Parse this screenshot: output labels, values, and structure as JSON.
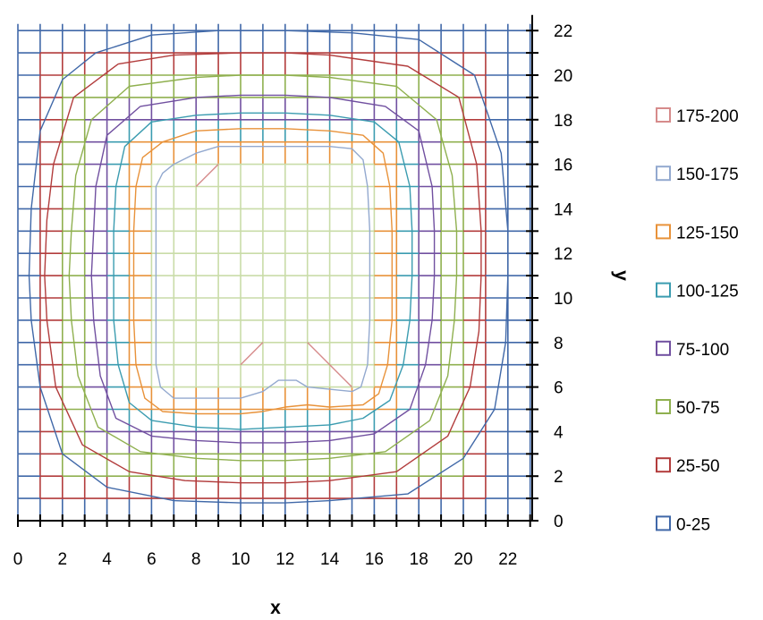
{
  "chart_data": {
    "type": "contour",
    "xlabel": "x",
    "ylabel": "y",
    "xlim": [
      0,
      23
    ],
    "ylim": [
      0,
      22.3
    ],
    "x_ticks": [
      "0",
      "2",
      "4",
      "6",
      "8",
      "10",
      "12",
      "14",
      "16",
      "18",
      "20",
      "22"
    ],
    "y_ticks": [
      "0",
      "2",
      "4",
      "6",
      "8",
      "10",
      "12",
      "14",
      "16",
      "18",
      "20",
      "22"
    ],
    "grid": true,
    "legend_position": "right",
    "series": [
      {
        "name": "175-200",
        "color": "#d68b8b",
        "points": [
          [
            8,
            15
          ],
          [
            9,
            16
          ]
        ]
      },
      {
        "name": "175-200",
        "color": "#d68b8b",
        "points": [
          [
            10,
            7
          ],
          [
            11,
            8
          ]
        ]
      },
      {
        "name": "175-200",
        "color": "#d68b8b",
        "points": [
          [
            13,
            8
          ],
          [
            15,
            6
          ]
        ]
      },
      {
        "name": "150-175",
        "color": "#93a9cf",
        "points": [
          [
            7,
            16
          ],
          [
            8,
            16.5
          ],
          [
            9,
            16.8
          ],
          [
            10,
            16.8
          ],
          [
            12,
            16.8
          ],
          [
            14,
            16.8
          ],
          [
            15,
            16.7
          ],
          [
            15.5,
            16.2
          ],
          [
            15.7,
            15
          ],
          [
            15.8,
            13
          ],
          [
            15.8,
            11
          ],
          [
            15.8,
            9
          ],
          [
            15.7,
            7
          ],
          [
            15.4,
            6
          ],
          [
            15,
            5.8
          ],
          [
            14,
            5.9
          ],
          [
            13,
            6
          ],
          [
            12.5,
            6.3
          ],
          [
            11.7,
            6.3
          ],
          [
            11,
            5.8
          ],
          [
            10,
            5.5
          ],
          [
            9,
            5.5
          ],
          [
            8,
            5.5
          ],
          [
            7,
            5.5
          ],
          [
            6.4,
            6
          ],
          [
            6.2,
            7
          ],
          [
            6.2,
            9
          ],
          [
            6.2,
            11
          ],
          [
            6.2,
            13
          ],
          [
            6.2,
            15
          ],
          [
            6.5,
            15.6
          ],
          [
            7,
            16
          ]
        ]
      },
      {
        "name": "125-150",
        "color": "#e8923a",
        "points": [
          [
            6.5,
            17
          ],
          [
            8,
            17.5
          ],
          [
            10,
            17.6
          ],
          [
            12,
            17.6
          ],
          [
            14,
            17.5
          ],
          [
            15.5,
            17.3
          ],
          [
            16.4,
            16.5
          ],
          [
            16.7,
            15
          ],
          [
            16.8,
            13
          ],
          [
            16.8,
            11
          ],
          [
            16.8,
            9
          ],
          [
            16.6,
            7
          ],
          [
            16.2,
            5.7
          ],
          [
            15.5,
            5.2
          ],
          [
            14,
            5.1
          ],
          [
            13,
            5.2
          ],
          [
            12,
            5.1
          ],
          [
            11,
            4.9
          ],
          [
            10,
            4.8
          ],
          [
            8,
            4.8
          ],
          [
            6.5,
            4.9
          ],
          [
            5.7,
            5.5
          ],
          [
            5.3,
            7
          ],
          [
            5.2,
            9
          ],
          [
            5.2,
            11
          ],
          [
            5.2,
            13
          ],
          [
            5.3,
            15
          ],
          [
            5.6,
            16.3
          ],
          [
            6.5,
            17
          ]
        ]
      },
      {
        "name": "100-125",
        "color": "#3b9cb0",
        "points": [
          [
            6,
            17.9
          ],
          [
            8,
            18.2
          ],
          [
            10,
            18.3
          ],
          [
            12,
            18.3
          ],
          [
            14,
            18.2
          ],
          [
            16,
            17.9
          ],
          [
            17.1,
            17
          ],
          [
            17.6,
            15
          ],
          [
            17.7,
            13
          ],
          [
            17.7,
            11
          ],
          [
            17.6,
            9
          ],
          [
            17.3,
            7
          ],
          [
            16.7,
            5.4
          ],
          [
            15.5,
            4.6
          ],
          [
            14,
            4.3
          ],
          [
            12,
            4.2
          ],
          [
            10,
            4.1
          ],
          [
            8,
            4.2
          ],
          [
            6,
            4.5
          ],
          [
            5,
            5.3
          ],
          [
            4.5,
            7
          ],
          [
            4.3,
            9
          ],
          [
            4.3,
            11
          ],
          [
            4.3,
            13
          ],
          [
            4.4,
            15
          ],
          [
            4.8,
            16.8
          ],
          [
            6,
            17.9
          ]
        ]
      },
      {
        "name": "75-100",
        "color": "#7150a0",
        "points": [
          [
            5.5,
            18.6
          ],
          [
            8,
            19
          ],
          [
            10,
            19.1
          ],
          [
            12,
            19.1
          ],
          [
            14,
            19
          ],
          [
            16.5,
            18.6
          ],
          [
            18,
            17.5
          ],
          [
            18.6,
            15
          ],
          [
            18.7,
            13
          ],
          [
            18.7,
            11
          ],
          [
            18.6,
            9
          ],
          [
            18.3,
            7
          ],
          [
            17.6,
            5
          ],
          [
            16,
            3.9
          ],
          [
            14,
            3.6
          ],
          [
            12,
            3.5
          ],
          [
            10,
            3.5
          ],
          [
            8,
            3.6
          ],
          [
            6,
            3.8
          ],
          [
            4.4,
            4.6
          ],
          [
            3.7,
            6.5
          ],
          [
            3.4,
            9
          ],
          [
            3.3,
            11
          ],
          [
            3.4,
            13
          ],
          [
            3.5,
            15
          ],
          [
            4,
            17.3
          ],
          [
            5.5,
            18.6
          ]
        ]
      },
      {
        "name": "50-75",
        "color": "#8fb04f",
        "points": [
          [
            5,
            19.5
          ],
          [
            8,
            19.9
          ],
          [
            10,
            20
          ],
          [
            12,
            20
          ],
          [
            14,
            19.9
          ],
          [
            17,
            19.5
          ],
          [
            18.8,
            18
          ],
          [
            19.5,
            15.5
          ],
          [
            19.7,
            13
          ],
          [
            19.7,
            11
          ],
          [
            19.6,
            9
          ],
          [
            19.3,
            6.5
          ],
          [
            18.5,
            4.5
          ],
          [
            16.5,
            3.1
          ],
          [
            14,
            2.8
          ],
          [
            12,
            2.7
          ],
          [
            10,
            2.7
          ],
          [
            8,
            2.8
          ],
          [
            5.5,
            3.1
          ],
          [
            3.6,
            4.2
          ],
          [
            2.7,
            6.5
          ],
          [
            2.4,
            9
          ],
          [
            2.3,
            11
          ],
          [
            2.4,
            13
          ],
          [
            2.6,
            15.5
          ],
          [
            3.3,
            18
          ],
          [
            5,
            19.5
          ]
        ]
      },
      {
        "name": "25-50",
        "color": "#b23c3c",
        "points": [
          [
            4.5,
            20.5
          ],
          [
            7,
            20.9
          ],
          [
            10,
            21
          ],
          [
            12,
            21
          ],
          [
            14,
            20.9
          ],
          [
            17.5,
            20.4
          ],
          [
            19.8,
            19
          ],
          [
            20.6,
            16
          ],
          [
            20.8,
            13
          ],
          [
            20.8,
            11
          ],
          [
            20.7,
            8.5
          ],
          [
            20.3,
            6
          ],
          [
            19.3,
            3.8
          ],
          [
            17,
            2.2
          ],
          [
            14,
            1.8
          ],
          [
            12,
            1.7
          ],
          [
            10,
            1.7
          ],
          [
            7.5,
            1.8
          ],
          [
            5,
            2.2
          ],
          [
            2.9,
            3.4
          ],
          [
            1.7,
            6
          ],
          [
            1.3,
            9
          ],
          [
            1.2,
            11
          ],
          [
            1.3,
            13.5
          ],
          [
            1.6,
            16
          ],
          [
            2.5,
            19
          ],
          [
            4.5,
            20.5
          ]
        ]
      },
      {
        "name": "0-25",
        "color": "#4068a8",
        "points": [
          [
            3.5,
            21
          ],
          [
            6,
            21.8
          ],
          [
            9,
            22
          ],
          [
            12,
            22
          ],
          [
            15,
            21.9
          ],
          [
            18,
            21.6
          ],
          [
            20.5,
            20
          ],
          [
            21.7,
            16.5
          ],
          [
            22,
            13
          ],
          [
            22,
            11
          ],
          [
            21.9,
            8
          ],
          [
            21.4,
            5
          ],
          [
            20,
            2.8
          ],
          [
            17.5,
            1.2
          ],
          [
            14,
            0.9
          ],
          [
            12,
            0.8
          ],
          [
            10,
            0.8
          ],
          [
            7,
            0.9
          ],
          [
            4,
            1.5
          ],
          [
            2,
            3
          ],
          [
            1,
            6
          ],
          [
            0.6,
            9
          ],
          [
            0.5,
            11
          ],
          [
            0.6,
            14
          ],
          [
            1,
            17.5
          ],
          [
            2,
            19.8
          ],
          [
            3.5,
            21
          ]
        ]
      }
    ],
    "legend": [
      {
        "label": "175-200",
        "color": "#d68b8b"
      },
      {
        "label": "150-175",
        "color": "#93a9cf"
      },
      {
        "label": "125-150",
        "color": "#e8923a"
      },
      {
        "label": "100-125",
        "color": "#3b9cb0"
      },
      {
        "label": "75-100",
        "color": "#7150a0"
      },
      {
        "label": "50-75",
        "color": "#8fb04f"
      },
      {
        "label": "25-50",
        "color": "#b23c3c"
      },
      {
        "label": "0-25",
        "color": "#4068a8"
      }
    ],
    "grid_bands_x": [
      [
        "#4068a8",
        "#4068a8",
        "#4068a8",
        "#4068a8",
        "#4068a8",
        "#4068a8",
        "#4068a8",
        "#4068a8",
        "#4068a8",
        "#4068a8",
        "#4068a8",
        "#4068a8",
        "#4068a8",
        "#4068a8",
        "#4068a8",
        "#4068a8",
        "#4068a8",
        "#4068a8",
        "#4068a8",
        "#4068a8",
        "#4068a8",
        "#4068a8",
        "#4068a8"
      ],
      [
        "#4068a8",
        "#4068a8",
        "#b23c3c",
        "#b23c3c",
        "#b23c3c",
        "#b23c3c",
        "#b23c3c",
        "#b23c3c",
        "#b23c3c",
        "#b23c3c",
        "#b23c3c",
        "#b23c3c",
        "#b23c3c",
        "#b23c3c",
        "#b23c3c",
        "#b23c3c",
        "#b23c3c",
        "#b23c3c",
        "#b23c3c",
        "#b23c3c",
        "#b23c3c",
        "#4068a8",
        "#4068a8"
      ],
      [
        "#4068a8",
        "#b23c3c",
        "#b23c3c",
        "#8fb04f",
        "#8fb04f",
        "#8fb04f",
        "#8fb04f",
        "#8fb04f",
        "#8fb04f",
        "#8fb04f",
        "#8fb04f",
        "#8fb04f",
        "#8fb04f",
        "#8fb04f",
        "#8fb04f",
        "#8fb04f",
        "#8fb04f",
        "#8fb04f",
        "#8fb04f",
        "#8fb04f",
        "#b23c3c",
        "#b23c3c",
        "#4068a8"
      ],
      [
        "#4068a8",
        "#b23c3c",
        "#8fb04f",
        "#8fb04f",
        "#7150a0",
        "#7150a0",
        "#7150a0",
        "#7150a0",
        "#7150a0",
        "#7150a0",
        "#7150a0",
        "#7150a0",
        "#7150a0",
        "#7150a0",
        "#7150a0",
        "#7150a0",
        "#7150a0",
        "#7150a0",
        "#7150a0",
        "#8fb04f",
        "#8fb04f",
        "#b23c3c",
        "#4068a8"
      ],
      [
        "#4068a8",
        "#b23c3c",
        "#8fb04f",
        "#7150a0",
        "#7150a0",
        "#3b9cb0",
        "#3b9cb0",
        "#3b9cb0",
        "#3b9cb0",
        "#3b9cb0",
        "#3b9cb0",
        "#3b9cb0",
        "#3b9cb0",
        "#3b9cb0",
        "#3b9cb0",
        "#3b9cb0",
        "#3b9cb0",
        "#3b9cb0",
        "#7150a0",
        "#7150a0",
        "#8fb04f",
        "#b23c3c",
        "#4068a8"
      ],
      [
        "#4068a8",
        "#b23c3c",
        "#8fb04f",
        "#7150a0",
        "#3b9cb0",
        "#3b9cb0",
        "#e8923a",
        "#e8923a",
        "#e8923a",
        "#e8923a",
        "#e8923a",
        "#e8923a",
        "#e8923a",
        "#e8923a",
        "#e8923a",
        "#e8923a",
        "#e8923a",
        "#3b9cb0",
        "#3b9cb0",
        "#7150a0",
        "#8fb04f",
        "#b23c3c",
        "#4068a8"
      ],
      [
        "#4068a8",
        "#b23c3c",
        "#8fb04f",
        "#7150a0",
        "#3b9cb0",
        "#e8923a",
        "#e8923a",
        "#93a9cf",
        "#93a9cf",
        "#93a9cf",
        "#93a9cf",
        "#93a9cf",
        "#93a9cf",
        "#93a9cf",
        "#93a9cf",
        "#93a9cf",
        "#e8923a",
        "#e8923a",
        "#3b9cb0",
        "#7150a0",
        "#8fb04f",
        "#b23c3c",
        "#4068a8"
      ]
    ]
  }
}
